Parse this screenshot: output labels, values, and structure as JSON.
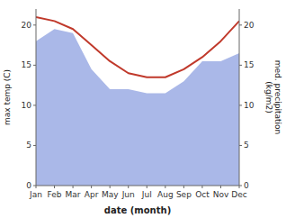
{
  "chart_data": {
    "type": "line",
    "categories": [
      "Jan",
      "Feb",
      "Mar",
      "Apr",
      "May",
      "Jun",
      "Jul",
      "Aug",
      "Sep",
      "Oct",
      "Nov",
      "Dec"
    ],
    "x_label": "date (month)",
    "y_label": "max temp (C)",
    "y2_label": "med. precipitation\n(kg/m2)",
    "series": [
      {
        "type": "area",
        "color": "#aab8e8",
        "values": [
          18.0,
          19.5,
          19.0,
          14.5,
          12.0,
          12.0,
          11.5,
          11.5,
          13.0,
          15.5,
          15.5,
          16.5
        ]
      },
      {
        "type": "line",
        "color": "#c0392b",
        "axis": "y2",
        "values": [
          21.0,
          20.5,
          19.5,
          17.5,
          15.5,
          14.0,
          13.5,
          13.5,
          14.5,
          16.0,
          18.0,
          20.5
        ]
      }
    ],
    "ylim": [
      0,
      22
    ],
    "yticks": [
      0,
      5,
      10,
      15,
      20
    ],
    "y2lim": [
      0,
      22
    ],
    "y2ticks": [
      0,
      5,
      10,
      15,
      20
    ],
    "grid": false
  }
}
